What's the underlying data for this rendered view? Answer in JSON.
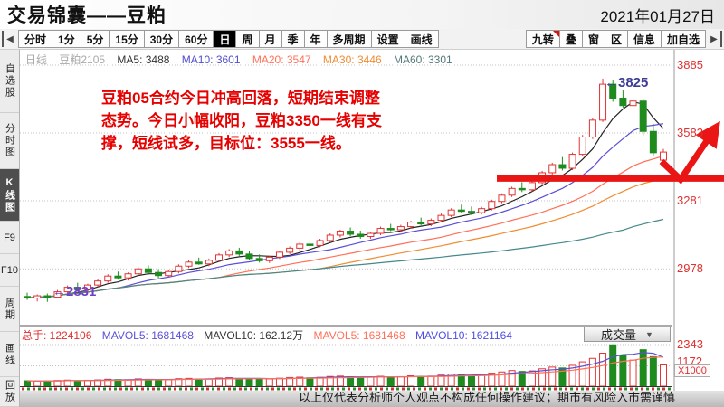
{
  "header": {
    "title": "交易锦囊——豆粕",
    "date": "2021年01月27日"
  },
  "toolbar": {
    "periods": [
      "分时",
      "1分",
      "5分",
      "15分",
      "30分",
      "60分",
      "日",
      "周",
      "月",
      "季",
      "年",
      "多周期",
      "设置",
      "画线"
    ],
    "active_period": "日",
    "right_buttons": [
      "九转",
      "叠",
      "窗",
      "区",
      "信息",
      "加自选"
    ]
  },
  "icons": {
    "dropdown": "▼",
    "scroll_left": "◀",
    "scroll_right": "▶",
    "label_arrow": "←"
  },
  "sidebar": {
    "items": [
      "自选股",
      "分时图",
      "K线图",
      "F9",
      "F10",
      "周期",
      "画线",
      "回放"
    ],
    "active": "K线图"
  },
  "indicator_bar": {
    "period_label": "日线",
    "contract": "豆粕2105",
    "items": [
      {
        "label": "MA5: 3488",
        "color": "#333333"
      },
      {
        "label": "MA10: 3601",
        "color": "#4f4fd0"
      },
      {
        "label": "MA20: 3547",
        "color": "#ff7058"
      },
      {
        "label": "MA30: 3446",
        "color": "#f08c32"
      },
      {
        "label": "MA60: 3301",
        "color": "#55787a"
      }
    ]
  },
  "annotation": {
    "color": "#e60000",
    "line1": "豆粕05合约今日冲高回落，短期结束调整",
    "line2": "态势。今日小幅收阳，豆粕3350一线有支",
    "line3": "撑，短线试多，目标位：3555一线。"
  },
  "volume_bar": {
    "items": [
      {
        "label": "总手: 1224106",
        "color": "#e03030"
      },
      {
        "label": "MAVOL5: 1681468",
        "color": "#5b4fd6"
      },
      {
        "label": "MAVOL10: 162.12万",
        "color": "#333333"
      },
      {
        "label": "MAVOL5: 1681468",
        "color": "#ff7058"
      },
      {
        "label": "MAVOL10: 1621164",
        "color": "#4f4fe0"
      }
    ],
    "indicator_selector": "成交量"
  },
  "chart_data": {
    "type": "candlestick",
    "title": "豆粕2105 日线",
    "y_ticks": [
      3885,
      3583,
      3281,
      2978
    ],
    "volume_ticks": [
      2343,
      1172
    ],
    "volume_unit": "X1000",
    "high_label": "3825",
    "low_label": "2831",
    "ma_periods": [
      5,
      10,
      20,
      30,
      60
    ],
    "ma_colors": [
      "#222222",
      "#5b4fd6",
      "#ff7058",
      "#f08c32",
      "#45898b"
    ],
    "vol_ma_periods": [
      5,
      10
    ],
    "vol_ma_colors": [
      "#5b4fd6",
      "#ff7058"
    ],
    "up_color": "#e23535",
    "down_color": "#1f8b1f",
    "trendline_price": 3380,
    "trend_color": "#ea1515",
    "candles": [
      [
        2855,
        2872,
        2840,
        2848,
        310
      ],
      [
        2848,
        2864,
        2833,
        2858,
        290
      ],
      [
        2858,
        2868,
        2831,
        2852,
        300
      ],
      [
        2852,
        2884,
        2846,
        2876,
        330
      ],
      [
        2876,
        2904,
        2868,
        2896,
        350
      ],
      [
        2896,
        2916,
        2880,
        2886,
        320
      ],
      [
        2886,
        2912,
        2878,
        2906,
        340
      ],
      [
        2906,
        2932,
        2898,
        2924,
        360
      ],
      [
        2924,
        2954,
        2916,
        2946,
        400
      ],
      [
        2946,
        2966,
        2930,
        2938,
        380
      ],
      [
        2938,
        2962,
        2926,
        2956,
        370
      ],
      [
        2956,
        2986,
        2948,
        2978,
        420
      ],
      [
        2978,
        2994,
        2952,
        2962,
        390
      ],
      [
        2962,
        2976,
        2938,
        2948,
        360
      ],
      [
        2948,
        2972,
        2940,
        2966,
        380
      ],
      [
        2966,
        2998,
        2958,
        2990,
        430
      ],
      [
        2990,
        3016,
        2982,
        3008,
        450
      ],
      [
        3008,
        3028,
        2996,
        3000,
        410
      ],
      [
        3000,
        3024,
        2990,
        3016,
        420
      ],
      [
        3016,
        3048,
        3008,
        3040,
        470
      ],
      [
        3040,
        3066,
        3030,
        3058,
        490
      ],
      [
        3058,
        3072,
        3036,
        3044,
        440
      ],
      [
        3044,
        3056,
        3016,
        3024,
        430
      ],
      [
        3024,
        3042,
        3006,
        3014,
        400
      ],
      [
        3014,
        3036,
        3004,
        3030,
        420
      ],
      [
        3030,
        3058,
        3022,
        3052,
        460
      ],
      [
        3052,
        3078,
        3044,
        3070,
        500
      ],
      [
        3070,
        3096,
        3060,
        3088,
        520
      ],
      [
        3088,
        3106,
        3070,
        3082,
        480
      ],
      [
        3082,
        3112,
        3074,
        3104,
        510
      ],
      [
        3104,
        3136,
        3096,
        3128,
        560
      ],
      [
        3128,
        3152,
        3118,
        3146,
        580
      ],
      [
        3146,
        3162,
        3124,
        3132,
        540
      ],
      [
        3132,
        3148,
        3112,
        3122,
        500
      ],
      [
        3122,
        3144,
        3112,
        3136,
        520
      ],
      [
        3136,
        3166,
        3128,
        3158,
        570
      ],
      [
        3158,
        3178,
        3146,
        3152,
        530
      ],
      [
        3152,
        3174,
        3142,
        3166,
        550
      ],
      [
        3166,
        3192,
        3158,
        3186,
        600
      ],
      [
        3186,
        3206,
        3172,
        3178,
        560
      ],
      [
        3178,
        3202,
        3168,
        3194,
        580
      ],
      [
        3194,
        3224,
        3186,
        3216,
        640
      ],
      [
        3216,
        3248,
        3208,
        3240,
        700
      ],
      [
        3240,
        3264,
        3226,
        3234,
        650
      ],
      [
        3234,
        3256,
        3218,
        3228,
        620
      ],
      [
        3228,
        3254,
        3220,
        3246,
        660
      ],
      [
        3246,
        3286,
        3238,
        3278,
        750
      ],
      [
        3278,
        3314,
        3270,
        3306,
        820
      ],
      [
        3306,
        3344,
        3298,
        3336,
        900
      ],
      [
        3336,
        3364,
        3320,
        3330,
        850
      ],
      [
        3330,
        3370,
        3322,
        3362,
        880
      ],
      [
        3362,
        3414,
        3354,
        3406,
        1000
      ],
      [
        3406,
        3450,
        3396,
        3442,
        1100
      ],
      [
        3442,
        3476,
        3416,
        3426,
        1050
      ],
      [
        3426,
        3496,
        3418,
        3488,
        1200
      ],
      [
        3488,
        3574,
        3480,
        3565,
        1400
      ],
      [
        3565,
        3650,
        3556,
        3640,
        1600
      ],
      [
        3640,
        3825,
        3632,
        3800,
        1900
      ],
      [
        3800,
        3816,
        3722,
        3738,
        2380
      ],
      [
        3738,
        3772,
        3696,
        3705,
        1800
      ],
      [
        3705,
        3736,
        3682,
        3725,
        1500
      ],
      [
        3725,
        3734,
        3572,
        3590,
        2100
      ],
      [
        3590,
        3624,
        3478,
        3495,
        1700
      ],
      [
        3462,
        3512,
        3430,
        3498,
        1224
      ]
    ]
  },
  "disclaimer": "以上仅代表分析师个人观点不构成任何操作建议；期市有风险入市需谨慎"
}
